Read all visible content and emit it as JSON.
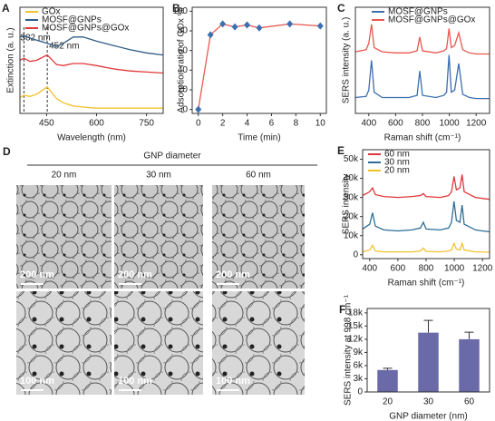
{
  "chart_data": [
    {
      "type": "line",
      "label": "A",
      "xlabel": "Wavelength (nm)",
      "ylabel": "Extinction (a. u.)",
      "x": [
        370,
        382,
        400,
        420,
        452,
        480,
        500,
        530,
        560,
        600,
        650,
        700,
        750,
        800
      ],
      "series": [
        {
          "name": "GOx",
          "color": "#f2c12e",
          "values": [
            0.15,
            0.17,
            0.16,
            0.18,
            0.25,
            0.14,
            0.1,
            0.07,
            0.06,
            0.05,
            0.05,
            0.05,
            0.05,
            0.05
          ]
        },
        {
          "name": "MOSF@GNPs",
          "color": "#2f5c85",
          "values": [
            0.72,
            0.73,
            0.71,
            0.69,
            0.66,
            0.63,
            0.66,
            0.72,
            0.72,
            0.68,
            0.64,
            0.6,
            0.57,
            0.55
          ]
        },
        {
          "name": "MOSF@GNPs@GOx",
          "color": "#e0373a",
          "values": [
            0.5,
            0.52,
            0.49,
            0.5,
            0.55,
            0.46,
            0.45,
            0.47,
            0.47,
            0.45,
            0.42,
            0.4,
            0.39,
            0.38
          ]
        }
      ],
      "annotations": [
        {
          "text": "382 nm",
          "x": 382
        },
        {
          "text": "452 nm",
          "x": 452
        }
      ],
      "xlim": [
        370,
        800
      ],
      "xticks": [
        450,
        600,
        750
      ],
      "ylim": [
        0,
        1
      ],
      "legend": "top-left"
    },
    {
      "type": "line",
      "label": "B",
      "xlabel": "Time (min)",
      "ylabel": "Adsorption ratio of GOx %",
      "x": [
        0,
        1,
        2,
        3,
        4,
        5,
        7.5,
        10
      ],
      "series": [
        {
          "color": "#e8584f",
          "marker_color": "#3a6fb0",
          "values": [
            0,
            76,
            87,
            84,
            86,
            83,
            87,
            85
          ]
        }
      ],
      "xlim": [
        -0.5,
        10.5
      ],
      "xticks": [
        0,
        2,
        4,
        6,
        8,
        10
      ],
      "ylim": [
        -4,
        104
      ],
      "yticks": [
        0,
        20,
        40,
        60,
        80,
        100
      ]
    },
    {
      "type": "line",
      "label": "C",
      "xlabel": "Raman shift (cm⁻¹)",
      "ylabel": "SERS intensity (a. u.)",
      "x": [
        300,
        380,
        400,
        420,
        440,
        500,
        600,
        700,
        760,
        780,
        800,
        900,
        960,
        980,
        998,
        1015,
        1040,
        1070,
        1100,
        1150,
        1200,
        1300
      ],
      "series": [
        {
          "name": "MOSF@GNPs",
          "color": "#3a6fb0",
          "values": [
            0.15,
            0.16,
            0.22,
            0.5,
            0.2,
            0.15,
            0.15,
            0.15,
            0.17,
            0.4,
            0.17,
            0.15,
            0.17,
            0.2,
            0.55,
            0.2,
            0.22,
            0.47,
            0.18,
            0.15,
            0.14,
            0.14
          ]
        },
        {
          "name": "MOSF@GNPs@GOx",
          "color": "#e8584f",
          "values": [
            0.58,
            0.6,
            0.66,
            0.84,
            0.62,
            0.58,
            0.57,
            0.57,
            0.59,
            0.72,
            0.59,
            0.57,
            0.59,
            0.61,
            0.8,
            0.62,
            0.64,
            0.76,
            0.6,
            0.57,
            0.56,
            0.56
          ]
        }
      ],
      "xlim": [
        300,
        1300
      ],
      "xticks": [
        400,
        600,
        800,
        1000,
        1200
      ],
      "ylim": [
        0,
        1
      ],
      "legend": "top"
    },
    {
      "type": "line",
      "label": "E",
      "xlabel": "Raman shift (cm⁻¹)",
      "ylabel": "SERS intensity",
      "x": [
        350,
        400,
        420,
        440,
        500,
        600,
        700,
        760,
        780,
        800,
        900,
        960,
        980,
        998,
        1015,
        1040,
        1055,
        1070,
        1150,
        1200,
        1250
      ],
      "series": [
        {
          "name": "60 nm",
          "color": "#e0373a",
          "values": [
            31000,
            33000,
            35000,
            31500,
            30500,
            30000,
            30500,
            31000,
            32000,
            30500,
            30000,
            31000,
            33000,
            41000,
            34000,
            35000,
            42000,
            33000,
            30000,
            29500,
            29000
          ]
        },
        {
          "name": "30 nm",
          "color": "#2f6e96",
          "values": [
            13500,
            16000,
            22000,
            15000,
            13000,
            12500,
            13000,
            14000,
            17000,
            13500,
            13000,
            14000,
            17000,
            28000,
            18000,
            17000,
            26000,
            16000,
            13000,
            12500,
            12000
          ]
        },
        {
          "name": "20 nm",
          "color": "#f2c12e",
          "values": [
            1500,
            2500,
            5000,
            2000,
            1500,
            1500,
            1500,
            2000,
            3500,
            1800,
            1500,
            2000,
            2500,
            6000,
            3000,
            2500,
            6000,
            2500,
            1500,
            1500,
            1300
          ]
        }
      ],
      "xlim": [
        350,
        1250
      ],
      "xticks": [
        400,
        600,
        800,
        1000,
        1200
      ],
      "ylim": [
        -2000,
        55000
      ],
      "yticks": [
        0,
        {
          "value": 10000,
          "label": "10k"
        },
        {
          "value": 20000,
          "label": "20k"
        },
        {
          "value": 30000,
          "label": "30k"
        },
        {
          "value": 40000,
          "label": "40k"
        },
        {
          "value": 50000,
          "label": "50k"
        }
      ],
      "legend": "top-left"
    },
    {
      "type": "bar",
      "label": "F",
      "xlabel": "GNP diameter (nm)",
      "ylabel": "SERS intensity at 998 cm⁻¹",
      "categories": [
        "20",
        "30",
        "60"
      ],
      "values": [
        5000,
        13500,
        12000
      ],
      "errors": [
        400,
        2800,
        1600
      ],
      "color": "#6a6aa8",
      "ylim": [
        0,
        19000
      ],
      "yticks": [
        0,
        {
          "value": 3000,
          "label": "3k"
        },
        {
          "value": 6000,
          "label": "6k"
        },
        {
          "value": 9000,
          "label": "9k"
        },
        {
          "value": 12000,
          "label": "12k"
        },
        {
          "value": 15000,
          "label": "15k"
        },
        {
          "value": 18000,
          "label": "18k"
        }
      ]
    }
  ],
  "tem": {
    "label": "D",
    "title": "GNP diameter",
    "columns": [
      "20 nm",
      "30 nm",
      "60 nm"
    ],
    "scale_bars": [
      [
        "200 nm",
        "200 nm",
        "200 nm"
      ],
      [
        "100 nm",
        "100 nm",
        "100 nm"
      ]
    ]
  }
}
